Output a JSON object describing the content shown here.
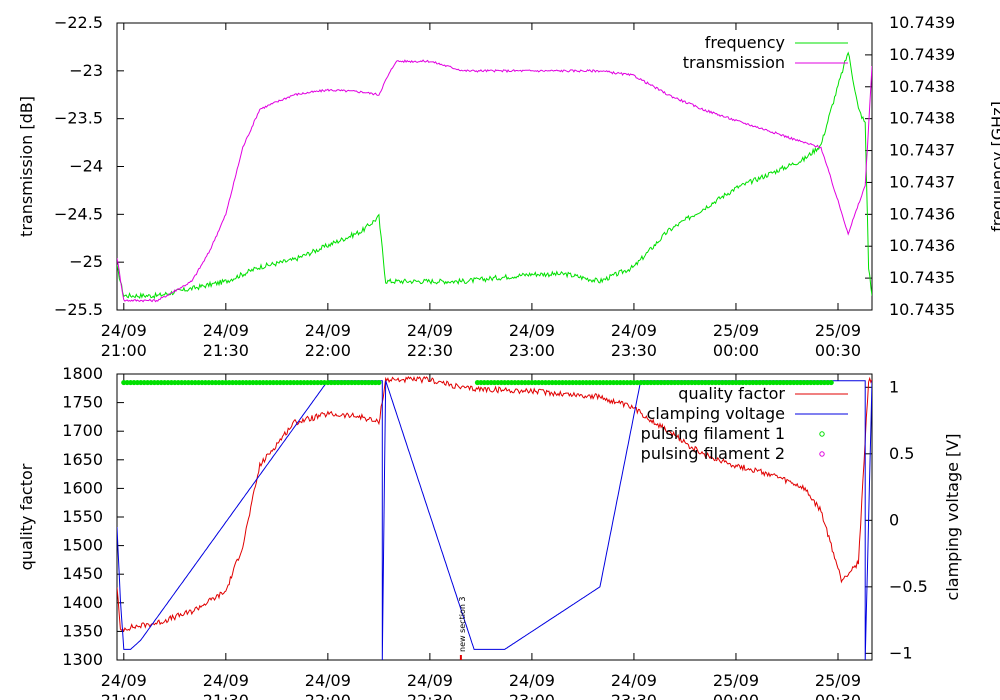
{
  "colors": {
    "frequency": "#00e000",
    "transmission": "#e000e0",
    "quality_factor": "#e00000",
    "clamping_voltage": "#0000e0",
    "pulsing_filament_1": "#00e000",
    "pulsing_filament_2": "#e000e0",
    "axes": "#000000",
    "marker": "#e00000"
  },
  "x_ticks": [
    {
      "date": "24/09",
      "time": "21:00"
    },
    {
      "date": "24/09",
      "time": "21:30"
    },
    {
      "date": "24/09",
      "time": "22:00"
    },
    {
      "date": "24/09",
      "time": "22:30"
    },
    {
      "date": "24/09",
      "time": "23:00"
    },
    {
      "date": "24/09",
      "time": "23:30"
    },
    {
      "date": "25/09",
      "time": "00:00"
    },
    {
      "date": "25/09",
      "time": "00:30"
    }
  ],
  "chart_data": [
    {
      "type": "line",
      "xlim": [
        "24/09 20:58",
        "25/09 00:40"
      ],
      "ylabel": "transmission [dB]",
      "y2label": "frequency [GHz]",
      "ylim": [
        -25.5,
        -22.5
      ],
      "y2lim": [
        10.7435,
        10.7439
      ],
      "y_ticks": [
        "−22.5",
        "−23",
        "−23.5",
        "−24",
        "−24.5",
        "−25",
        "−25.5"
      ],
      "y2_ticks": [
        "10.7439",
        "10.7439",
        "10.7438",
        "10.7438",
        "10.7437",
        "10.7437",
        "10.7436",
        "10.7436",
        "10.7435",
        "10.7435"
      ],
      "legend": "top-right",
      "series": [
        {
          "name": "frequency",
          "axis": "right",
          "x": [
            "24/09 20:58",
            "24/09 21:00",
            "24/09 21:10",
            "24/09 21:20",
            "24/09 21:30",
            "24/09 21:40",
            "24/09 21:50",
            "24/09 22:00",
            "24/09 22:10",
            "24/09 22:15",
            "24/09 22:17",
            "24/09 22:30",
            "24/09 22:40",
            "24/09 23:00",
            "24/09 23:10",
            "24/09 23:20",
            "24/09 23:30",
            "24/09 23:40",
            "24/09 23:50",
            "25/09 00:00",
            "25/09 00:10",
            "25/09 00:20",
            "25/09 00:25",
            "25/09 00:28",
            "25/09 00:33",
            "25/09 00:36",
            "25/09 00:38",
            "25/09 00:39",
            "25/09 00:40"
          ],
          "values": [
            10.74356,
            10.74352,
            10.74352,
            10.74353,
            10.74354,
            10.74356,
            10.74357,
            10.74359,
            10.74361,
            10.74363,
            10.74354,
            10.74354,
            10.74354,
            10.74355,
            10.74355,
            10.74354,
            10.74356,
            10.74361,
            10.74364,
            10.74367,
            10.74369,
            10.74371,
            10.74373,
            10.74378,
            10.74386,
            10.74378,
            10.74376,
            10.74356,
            10.74352
          ]
        },
        {
          "name": "transmission",
          "axis": "left",
          "x": [
            "24/09 20:58",
            "24/09 21:00",
            "24/09 21:10",
            "24/09 21:20",
            "24/09 21:25",
            "24/09 21:30",
            "24/09 21:35",
            "24/09 21:40",
            "24/09 21:50",
            "24/09 22:00",
            "24/09 22:10",
            "24/09 22:15",
            "24/09 22:17",
            "24/09 22:20",
            "24/09 22:30",
            "24/09 22:40",
            "24/09 23:00",
            "24/09 23:20",
            "24/09 23:30",
            "24/09 23:40",
            "24/09 23:50",
            "25/09 00:00",
            "25/09 00:10",
            "25/09 00:20",
            "25/09 00:25",
            "25/09 00:33",
            "25/09 00:36",
            "25/09 00:38",
            "25/09 00:40"
          ],
          "values": [
            -24.95,
            -25.4,
            -25.4,
            -25.2,
            -24.9,
            -24.5,
            -23.8,
            -23.4,
            -23.25,
            -23.2,
            -23.22,
            -23.25,
            -23.1,
            -22.9,
            -22.9,
            -23.0,
            -23.0,
            -23.0,
            -23.05,
            -23.25,
            -23.4,
            -23.52,
            -23.63,
            -23.75,
            -23.8,
            -24.7,
            -24.4,
            -24.2,
            -22.95
          ]
        }
      ]
    },
    {
      "type": "line",
      "xlim": [
        "24/09 20:58",
        "25/09 00:40"
      ],
      "ylabel": "quality factor",
      "y2label": "clamping voltage [V]",
      "ylim": [
        1300,
        1800
      ],
      "y2lim": [
        -1.05,
        1.1
      ],
      "y_ticks": [
        "1800",
        "1750",
        "1700",
        "1650",
        "1600",
        "1550",
        "1500",
        "1450",
        "1400",
        "1350",
        "1300"
      ],
      "y2_ticks": [
        "1",
        "0.5",
        "0",
        "−0.5",
        "−1"
      ],
      "legend": "top-right",
      "annotation": "new section 3",
      "series": [
        {
          "name": "quality factor",
          "axis": "left",
          "x": [
            "24/09 20:58",
            "24/09 20:59",
            "24/09 21:00",
            "24/09 21:10",
            "24/09 21:20",
            "24/09 21:30",
            "24/09 21:35",
            "24/09 21:40",
            "24/09 21:50",
            "24/09 22:00",
            "24/09 22:10",
            "24/09 22:15",
            "24/09 22:17",
            "24/09 22:30",
            "24/09 22:40",
            "24/09 23:00",
            "24/09 23:20",
            "24/09 23:30",
            "24/09 23:40",
            "24/09 23:50",
            "25/09 00:00",
            "25/09 00:10",
            "25/09 00:20",
            "25/09 00:25",
            "25/09 00:31",
            "25/09 00:36",
            "25/09 00:39",
            "25/09 00:40"
          ],
          "values": [
            1430,
            1350,
            1355,
            1365,
            1385,
            1420,
            1500,
            1640,
            1715,
            1730,
            1725,
            1715,
            1790,
            1790,
            1775,
            1770,
            1760,
            1740,
            1700,
            1660,
            1640,
            1625,
            1600,
            1560,
            1440,
            1470,
            1790,
            1790
          ]
        },
        {
          "name": "clamping voltage",
          "axis": "right",
          "x": [
            "24/09 20:58",
            "24/09 20:59",
            "24/09 21:00",
            "24/09 21:02",
            "24/09 21:05",
            "24/09 22:00",
            "24/09 22:16",
            "24/09 22:16",
            "24/09 22:17",
            "24/09 22:43",
            "24/09 22:52",
            "24/09 23:20",
            "24/09 23:32",
            "25/09 00:38",
            "25/09 00:38",
            "25/09 00:40"
          ],
          "values": [
            -0.05,
            -0.6,
            -0.97,
            -0.97,
            -0.9,
            1.05,
            1.05,
            -1.05,
            1.05,
            -0.97,
            -0.97,
            -0.5,
            1.05,
            1.05,
            -1.05,
            1.05
          ]
        },
        {
          "name": "pulsing filament 1",
          "type": "scatter",
          "segments": [
            [
              "24/09 21:00",
              "24/09 22:15"
            ],
            [
              "24/09 22:44",
              "25/09 00:28"
            ]
          ],
          "value": 1785
        },
        {
          "name": "pulsing filament 2",
          "type": "scatter",
          "x": [],
          "values": []
        }
      ]
    }
  ]
}
